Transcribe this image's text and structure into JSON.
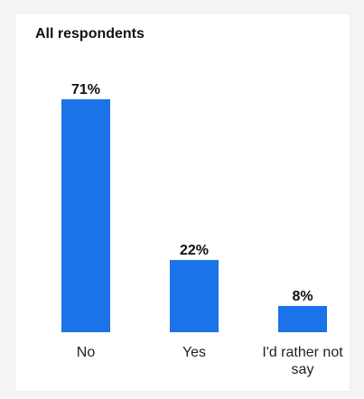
{
  "chart_data": {
    "type": "bar",
    "title": "All respondents",
    "categories": [
      "No",
      "Yes",
      "I'd rather not say"
    ],
    "category_lines": [
      [
        "No"
      ],
      [
        "Yes"
      ],
      [
        "I'd rather not",
        "say"
      ]
    ],
    "values": [
      71,
      22,
      8
    ],
    "value_labels": [
      "71%",
      "22%",
      "8%"
    ],
    "ylim": [
      0,
      71
    ],
    "grid": false,
    "legend": "none",
    "bar_color": "#1a73e8"
  }
}
